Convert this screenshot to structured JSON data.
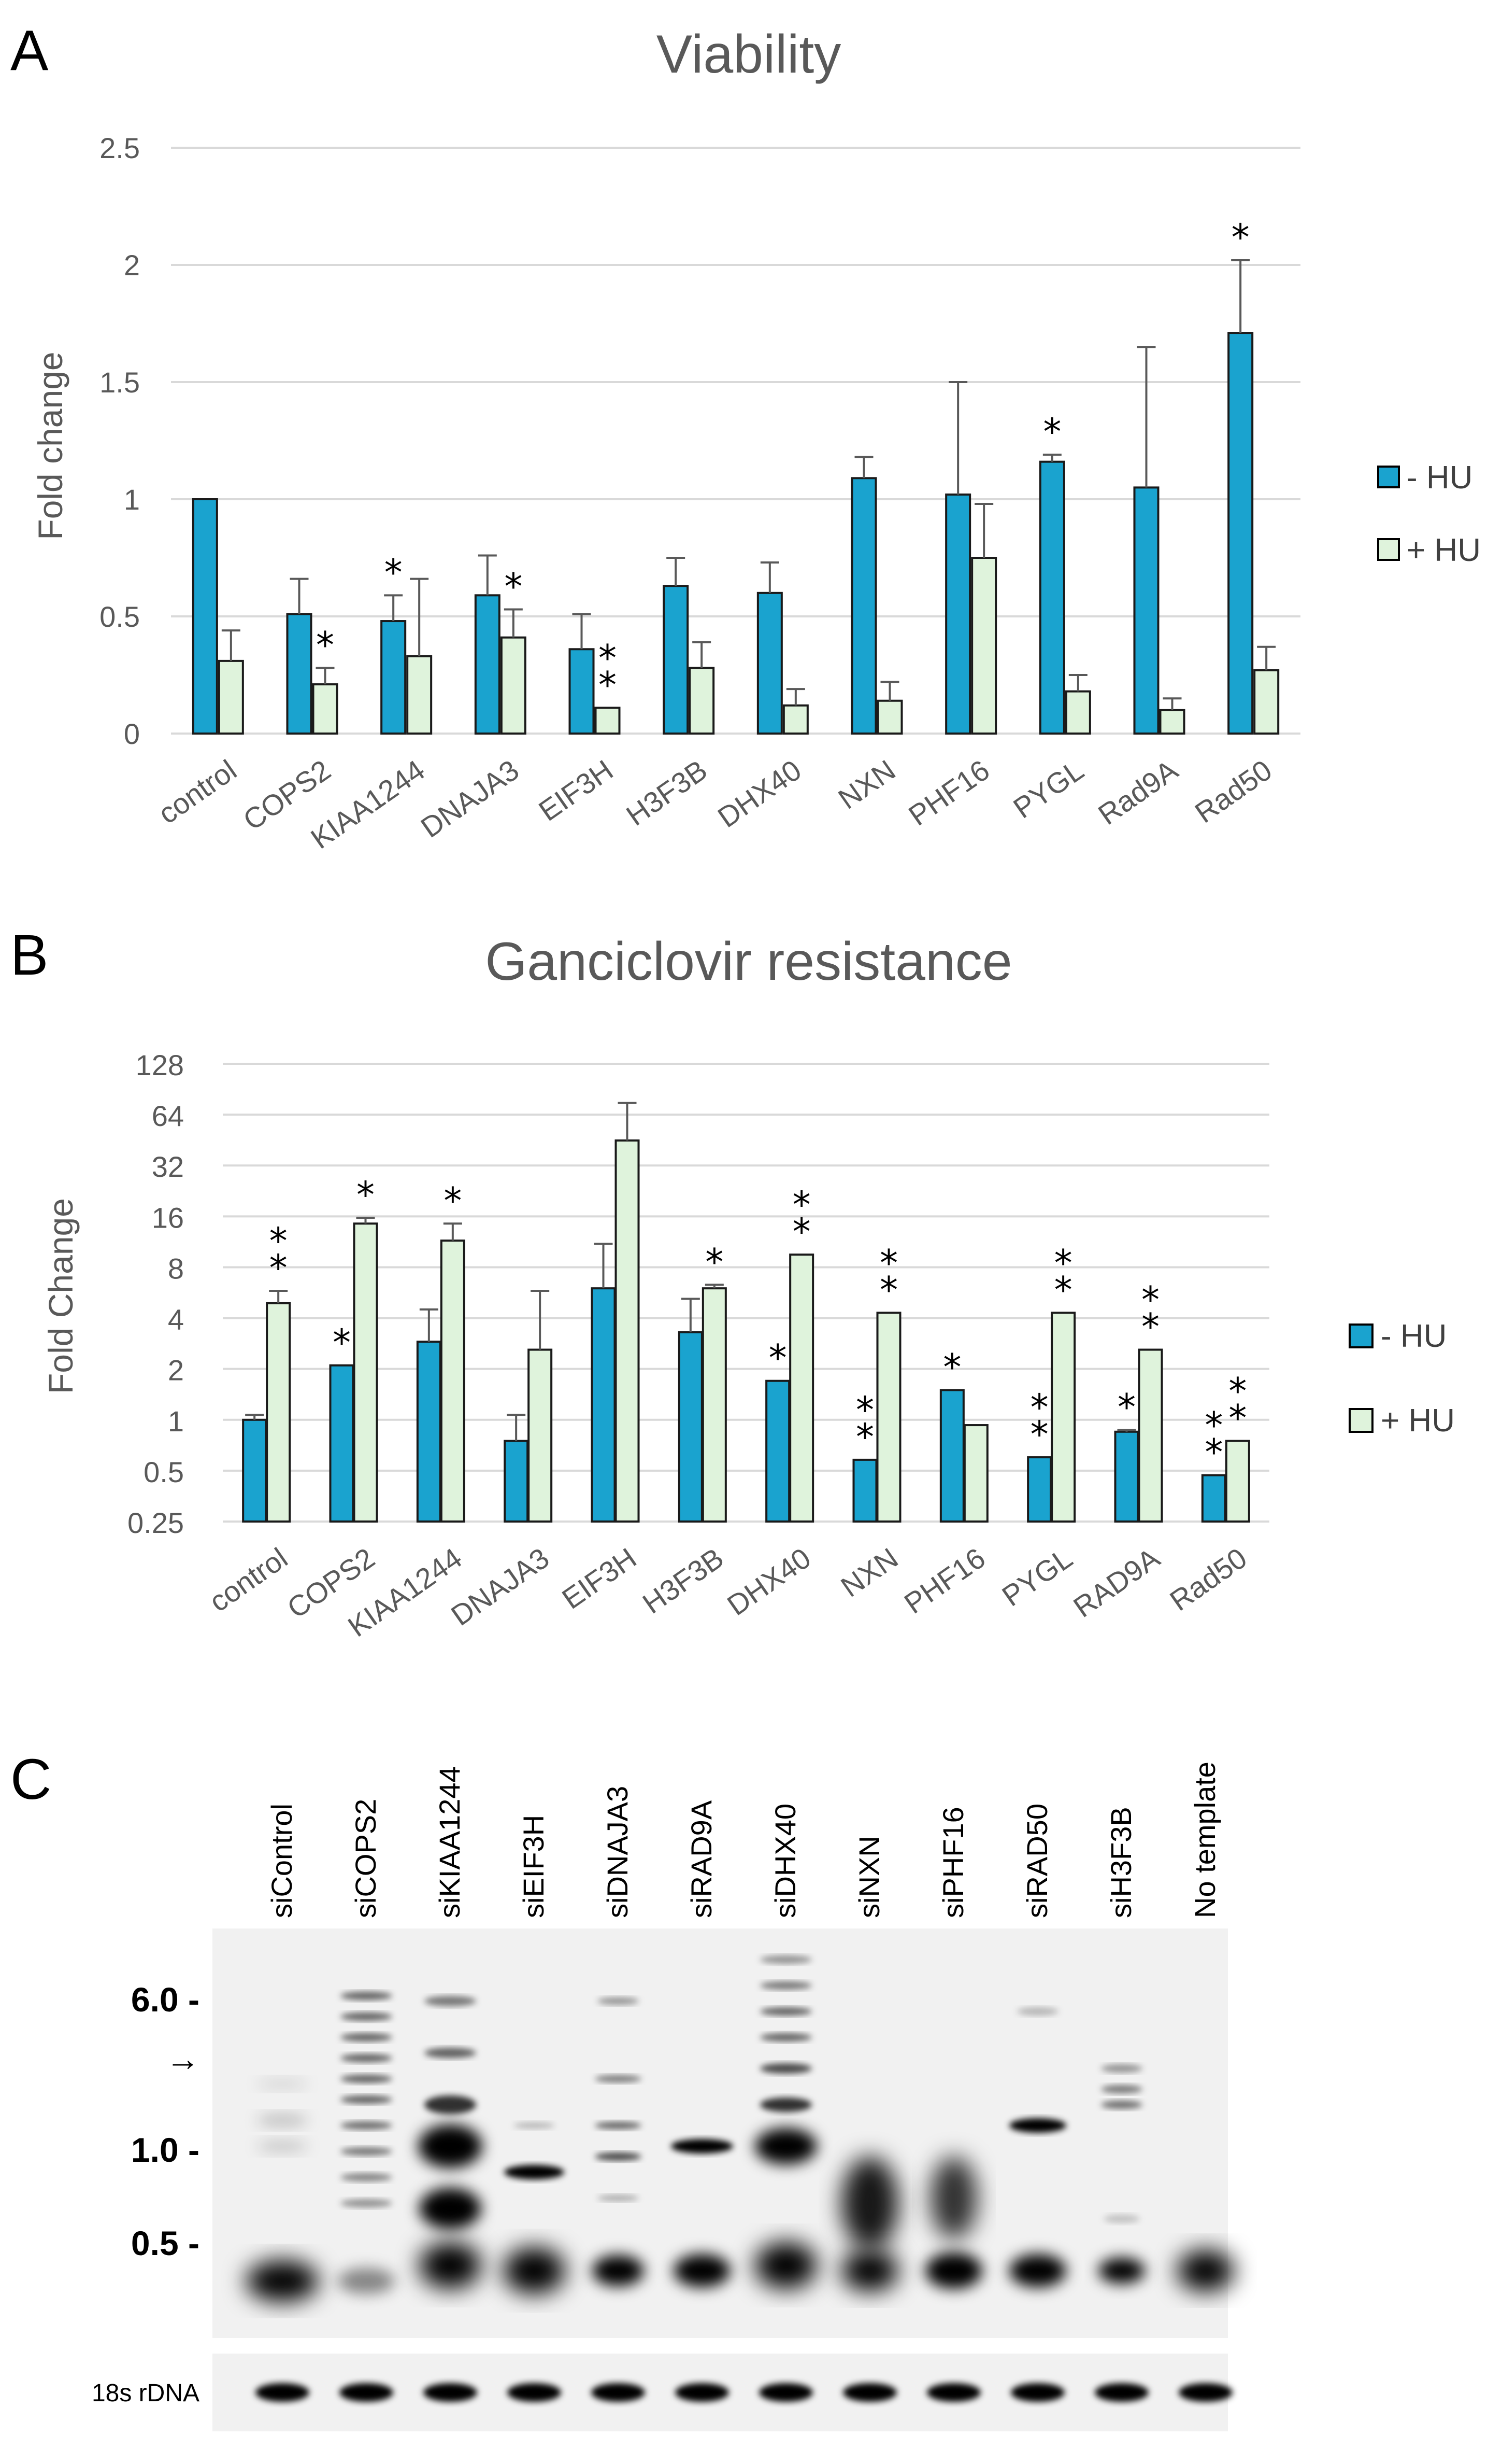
{
  "chart_data": [
    {
      "panel": "A",
      "type": "bar",
      "title": "Viability",
      "xlabel": "",
      "ylabel": "Fold change",
      "ylim": [
        0,
        2.5
      ],
      "yticks": [
        "0",
        "0.5",
        "1",
        "1.5",
        "2",
        "2.5"
      ],
      "categories": [
        "control",
        "COPS2",
        "KIAA1244",
        "DNAJA3",
        "EIF3H",
        "H3F3B",
        "DHX40",
        "NXN",
        "PHF16",
        "PYGL",
        "Rad9A",
        "Rad50"
      ],
      "series": [
        {
          "name": "- HU",
          "color": "#1aa3cf",
          "values": [
            1.0,
            0.51,
            0.48,
            0.59,
            0.36,
            0.63,
            0.6,
            1.09,
            1.02,
            1.16,
            1.05,
            1.71
          ],
          "errors": [
            0.0,
            0.15,
            0.11,
            0.17,
            0.15,
            0.12,
            0.13,
            0.09,
            0.48,
            0.03,
            0.6,
            0.31
          ],
          "stars": [
            "",
            "",
            "*",
            "",
            "",
            "",
            "",
            "",
            "",
            "*",
            "",
            "*"
          ]
        },
        {
          "name": "+ HU",
          "color": "#dff3dc",
          "values": [
            0.31,
            0.21,
            0.33,
            0.41,
            0.11,
            0.28,
            0.12,
            0.14,
            0.75,
            0.18,
            0.1,
            0.27
          ],
          "errors": [
            0.13,
            0.07,
            0.33,
            0.12,
            0.0,
            0.11,
            0.07,
            0.08,
            0.23,
            0.07,
            0.05,
            0.1
          ],
          "stars": [
            "",
            "*",
            "",
            "*",
            "**",
            "",
            "",
            "",
            "",
            "",
            "",
            ""
          ]
        }
      ],
      "legend": [
        "- HU",
        "+ HU"
      ]
    },
    {
      "panel": "B",
      "type": "bar",
      "title": "Ganciclovir resistance",
      "xlabel": "",
      "ylabel": "Fold Change",
      "yscale": "log2",
      "ylim": [
        0.25,
        128
      ],
      "yticks": [
        "0.25",
        "0.5",
        "1",
        "2",
        "4",
        "8",
        "16",
        "32",
        "64",
        "128"
      ],
      "categories": [
        "control",
        "COPS2",
        "KIAA1244",
        "DNAJA3",
        "EIF3H",
        "H3F3B",
        "DHX40",
        "NXN",
        "PHF16",
        "PYGL",
        "RAD9A",
        "Rad50"
      ],
      "series": [
        {
          "name": "- HU",
          "color": "#1aa3cf",
          "values": [
            1.0,
            2.1,
            2.9,
            0.75,
            6.0,
            3.3,
            1.7,
            0.58,
            1.5,
            0.6,
            0.85,
            0.47
          ],
          "errors_top": [
            1.07,
            2.1,
            4.5,
            1.07,
            11.0,
            5.2,
            1.7,
            0.58,
            1.5,
            0.6,
            0.87,
            0.47
          ],
          "stars": [
            "",
            "*",
            "",
            "",
            "",
            "",
            "*",
            "**",
            "*",
            "**",
            "*",
            "**"
          ]
        },
        {
          "name": "+ HU",
          "color": "#dff3dc",
          "values": [
            4.9,
            14.5,
            11.5,
            2.6,
            45.0,
            6.0,
            9.5,
            4.3,
            0.93,
            4.3,
            2.6,
            0.75
          ],
          "errors_top": [
            5.8,
            15.7,
            14.5,
            5.8,
            75.0,
            6.3,
            9.5,
            4.3,
            0.93,
            4.3,
            2.6,
            0.75
          ],
          "stars": [
            "**",
            "*",
            "*",
            "",
            "",
            "*",
            "**",
            "**",
            "",
            "**",
            "**",
            "**"
          ]
        }
      ],
      "legend": [
        "- HU",
        "+ HU"
      ]
    }
  ],
  "panels": {
    "a_letter": "A",
    "b_letter": "B",
    "c_letter": "C"
  },
  "gel": {
    "lanes": [
      "siControl",
      "siCOPS2",
      "siKIAA1244",
      "siEIF3H",
      "siDNAJA3",
      "siRAD9A",
      "siDHX40",
      "siNXN",
      "siPHF16",
      "siRAD50",
      "siH3F3B",
      "No template"
    ],
    "markers": [
      "6.0 -",
      "1.0 -",
      "0.5 -"
    ],
    "arrow": "→",
    "loading_control": "18s rDNA"
  }
}
